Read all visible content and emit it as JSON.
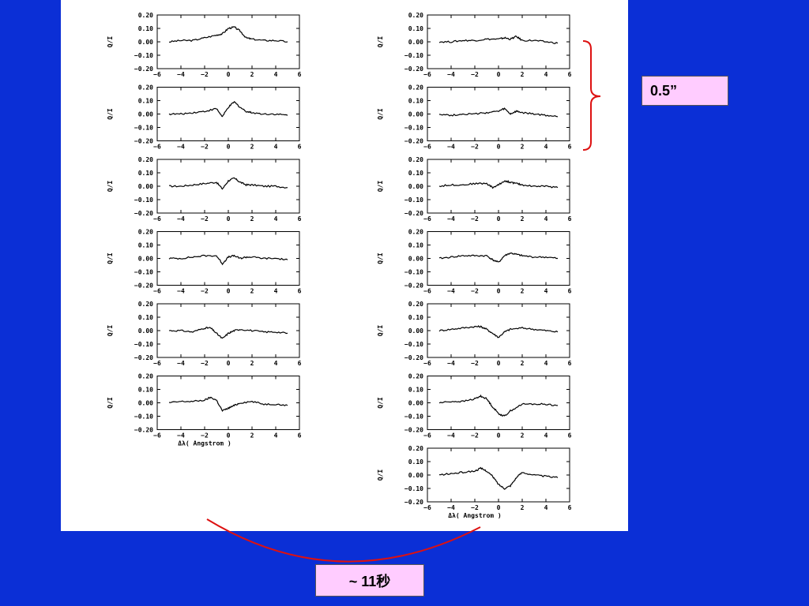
{
  "slide": {
    "background_color": "#0b2fd6",
    "box_color": "#ffccff",
    "annotation_color": "#dd1111",
    "bracket_label": "0.5”",
    "time_label": "~ 11秒"
  },
  "chart_data": {
    "type": "line",
    "layout": "grid-2-columns",
    "xlim": [
      -6,
      6
    ],
    "ylim": [
      -0.2,
      0.2
    ],
    "xticks": [
      "−6",
      "−4",
      "−2",
      "0",
      "2",
      "4",
      "6"
    ],
    "yticks": [
      "0.20",
      "0.10",
      "0.00",
      "−0.10",
      "−0.20"
    ],
    "ylabel": "Q/I",
    "xlabel": "Δλ( Angstrom )",
    "columns": [
      {
        "name": "left",
        "panels": [
          {
            "x": [
              -5,
              -4,
              -3,
              -2,
              -1,
              -0.5,
              0,
              0.5,
              1,
              1.5,
              2,
              3,
              4,
              5
            ],
            "y": [
              0.0,
              0.01,
              0.01,
              0.03,
              0.05,
              0.06,
              0.1,
              0.11,
              0.08,
              0.03,
              0.02,
              0.01,
              0.01,
              0.0
            ]
          },
          {
            "x": [
              -5,
              -4,
              -3,
              -2,
              -1,
              -0.5,
              0,
              0.5,
              1,
              1.5,
              2,
              3,
              4,
              5
            ],
            "y": [
              0.0,
              0.0,
              0.01,
              0.02,
              0.04,
              -0.02,
              0.05,
              0.09,
              0.05,
              0.02,
              0.01,
              0.0,
              0.0,
              -0.01
            ]
          },
          {
            "x": [
              -5,
              -4,
              -3,
              -2,
              -1,
              -0.5,
              0,
              0.5,
              1,
              1.5,
              2,
              3,
              4,
              5
            ],
            "y": [
              0.0,
              0.0,
              0.01,
              0.02,
              0.03,
              -0.02,
              0.04,
              0.06,
              0.03,
              0.01,
              0.01,
              0.0,
              0.0,
              -0.01
            ]
          },
          {
            "x": [
              -5,
              -4,
              -3,
              -2,
              -1,
              -0.5,
              0,
              0.5,
              1,
              1.5,
              2,
              3,
              4,
              5
            ],
            "y": [
              0.0,
              0.0,
              0.01,
              0.02,
              0.02,
              -0.04,
              0.01,
              0.02,
              0.0,
              0.01,
              0.01,
              0.0,
              0.0,
              -0.01
            ]
          },
          {
            "x": [
              -5,
              -4,
              -3,
              -2,
              -1.5,
              -1,
              -0.5,
              0,
              0.5,
              1,
              2,
              3,
              4,
              5
            ],
            "y": [
              0.0,
              0.0,
              -0.01,
              0.02,
              0.02,
              -0.02,
              -0.06,
              -0.02,
              0.0,
              0.01,
              0.0,
              -0.01,
              -0.01,
              -0.02
            ]
          },
          {
            "x": [
              -5,
              -4,
              -3,
              -2,
              -1.5,
              -1,
              -0.5,
              0,
              0.5,
              1,
              2,
              3,
              4,
              5
            ],
            "y": [
              0.0,
              0.01,
              0.01,
              0.02,
              0.04,
              0.02,
              -0.06,
              -0.04,
              -0.02,
              0.0,
              0.01,
              -0.01,
              -0.01,
              -0.02
            ]
          }
        ]
      },
      {
        "name": "right",
        "panels": [
          {
            "x": [
              -5,
              -4,
              -3,
              -2,
              -1,
              0,
              0.5,
              1,
              1.5,
              2,
              3,
              4,
              5
            ],
            "y": [
              0.0,
              0.0,
              0.01,
              0.01,
              0.02,
              0.02,
              0.03,
              0.02,
              0.04,
              0.01,
              0.01,
              0.0,
              -0.01
            ]
          },
          {
            "x": [
              -5,
              -4,
              -3,
              -2,
              -1,
              0,
              0.5,
              1,
              1.5,
              2,
              3,
              4,
              5
            ],
            "y": [
              0.0,
              -0.01,
              0.0,
              0.0,
              0.01,
              0.02,
              0.04,
              0.0,
              0.02,
              0.01,
              0.0,
              -0.01,
              -0.02
            ]
          },
          {
            "x": [
              -5,
              -4,
              -3,
              -2,
              -1,
              -0.5,
              0,
              0.5,
              1,
              1.5,
              2,
              3,
              4,
              5
            ],
            "y": [
              0.0,
              0.01,
              0.01,
              0.02,
              0.02,
              -0.01,
              0.01,
              0.04,
              0.03,
              0.02,
              0.01,
              0.0,
              0.0,
              -0.01
            ]
          },
          {
            "x": [
              -5,
              -4,
              -3,
              -2,
              -1,
              -0.5,
              0,
              0.5,
              1,
              1.5,
              2,
              3,
              4,
              5
            ],
            "y": [
              0.0,
              0.01,
              0.02,
              0.02,
              0.02,
              -0.01,
              -0.03,
              0.02,
              0.04,
              0.03,
              0.02,
              0.01,
              0.01,
              0.0
            ]
          },
          {
            "x": [
              -5,
              -4,
              -3,
              -2,
              -1.5,
              -1,
              -0.5,
              0,
              0.5,
              1,
              2,
              3,
              4,
              5
            ],
            "y": [
              0.0,
              0.01,
              0.02,
              0.03,
              0.03,
              0.01,
              -0.02,
              -0.05,
              -0.01,
              0.01,
              0.02,
              0.01,
              0.0,
              -0.01
            ]
          },
          {
            "x": [
              -5,
              -4,
              -3,
              -2,
              -1.5,
              -1,
              -0.5,
              0,
              0.5,
              1,
              2,
              3,
              4,
              5
            ],
            "y": [
              0.0,
              0.01,
              0.01,
              0.03,
              0.05,
              0.03,
              -0.03,
              -0.08,
              -0.1,
              -0.06,
              -0.01,
              -0.01,
              -0.01,
              -0.02
            ]
          },
          {
            "x": [
              -5,
              -4,
              -3,
              -2,
              -1.5,
              -1,
              -0.5,
              0,
              0.5,
              1,
              1.5,
              2,
              3,
              4,
              5
            ],
            "y": [
              0.0,
              0.01,
              0.02,
              0.03,
              0.05,
              0.03,
              -0.01,
              -0.07,
              -0.1,
              -0.08,
              -0.02,
              0.02,
              0.0,
              -0.01,
              -0.02
            ]
          }
        ]
      }
    ]
  }
}
